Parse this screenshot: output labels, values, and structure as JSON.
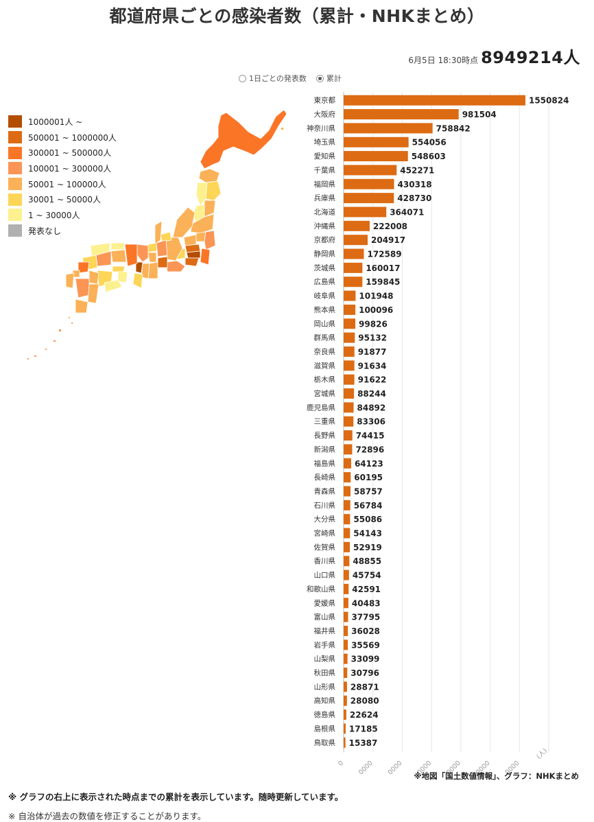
{
  "title": "都道府県ごとの感染者数（累計・NHKまとめ）",
  "timestamp": {
    "label": "6月5日 18:30時点",
    "total": "8949214人"
  },
  "view_toggle": {
    "daily_label": "1日ごとの発表数",
    "cumulative_label": "累計",
    "selected": "cumulative"
  },
  "legend": [
    {
      "label": "1000001人 ~",
      "color": "#b34d00"
    },
    {
      "label": "500001 ~ 1000000人",
      "color": "#dc6b13"
    },
    {
      "label": "300001 ~ 500000人",
      "color": "#fb7526"
    },
    {
      "label": "100001 ~ 300000人",
      "color": "#fb9556"
    },
    {
      "label": "50001 ~ 100000人",
      "color": "#fbb157"
    },
    {
      "label": "30001 ~ 50000人",
      "color": "#fdd557"
    },
    {
      "label": "1 ~ 30000人",
      "color": "#fdf08f"
    },
    {
      "label": "発表なし",
      "color": "#b0b0b0"
    }
  ],
  "chart_data": {
    "type": "bar",
    "orientation": "horizontal",
    "bar_color": "#dc6b13",
    "categories": [
      "東京都",
      "大阪府",
      "神奈川県",
      "埼玉県",
      "愛知県",
      "千葉県",
      "福岡県",
      "兵庫県",
      "北海道",
      "沖縄県",
      "京都府",
      "静岡県",
      "茨城県",
      "広島県",
      "岐阜県",
      "熊本県",
      "岡山県",
      "群馬県",
      "奈良県",
      "滋賀県",
      "栃木県",
      "宮城県",
      "鹿児島県",
      "三重県",
      "長野県",
      "新潟県",
      "福島県",
      "長崎県",
      "青森県",
      "石川県",
      "大分県",
      "宮崎県",
      "佐賀県",
      "香川県",
      "山口県",
      "和歌山県",
      "愛媛県",
      "富山県",
      "福井県",
      "岩手県",
      "山梨県",
      "秋田県",
      "山形県",
      "高知県",
      "徳島県",
      "島根県",
      "鳥取県"
    ],
    "values": [
      1550824,
      981504,
      758842,
      554056,
      548603,
      452271,
      430318,
      428730,
      364071,
      222008,
      204917,
      172589,
      160017,
      159845,
      101948,
      100096,
      99826,
      95132,
      91877,
      91634,
      91622,
      88244,
      84892,
      83306,
      74415,
      72896,
      64123,
      60195,
      58757,
      56784,
      55086,
      54143,
      52919,
      48855,
      45754,
      42591,
      40483,
      37795,
      36028,
      35569,
      33099,
      30796,
      28871,
      28080,
      22624,
      17185,
      15387
    ],
    "xlim": [
      0,
      1750000
    ],
    "x_ticks": [
      "0",
      "0000",
      "0000",
      "0000",
      "0000",
      "0000",
      "0000"
    ],
    "x_unit": "(人)",
    "grid": true
  },
  "notes": {
    "source": "※地図「国土数値情報」、グラフ：NHKまとめ",
    "note1": "※ グラフの右上に表示された時点までの累計を表示しています。随時更新しています。",
    "note2": "※ 自治体が過去の数値を修正することがあります。"
  }
}
